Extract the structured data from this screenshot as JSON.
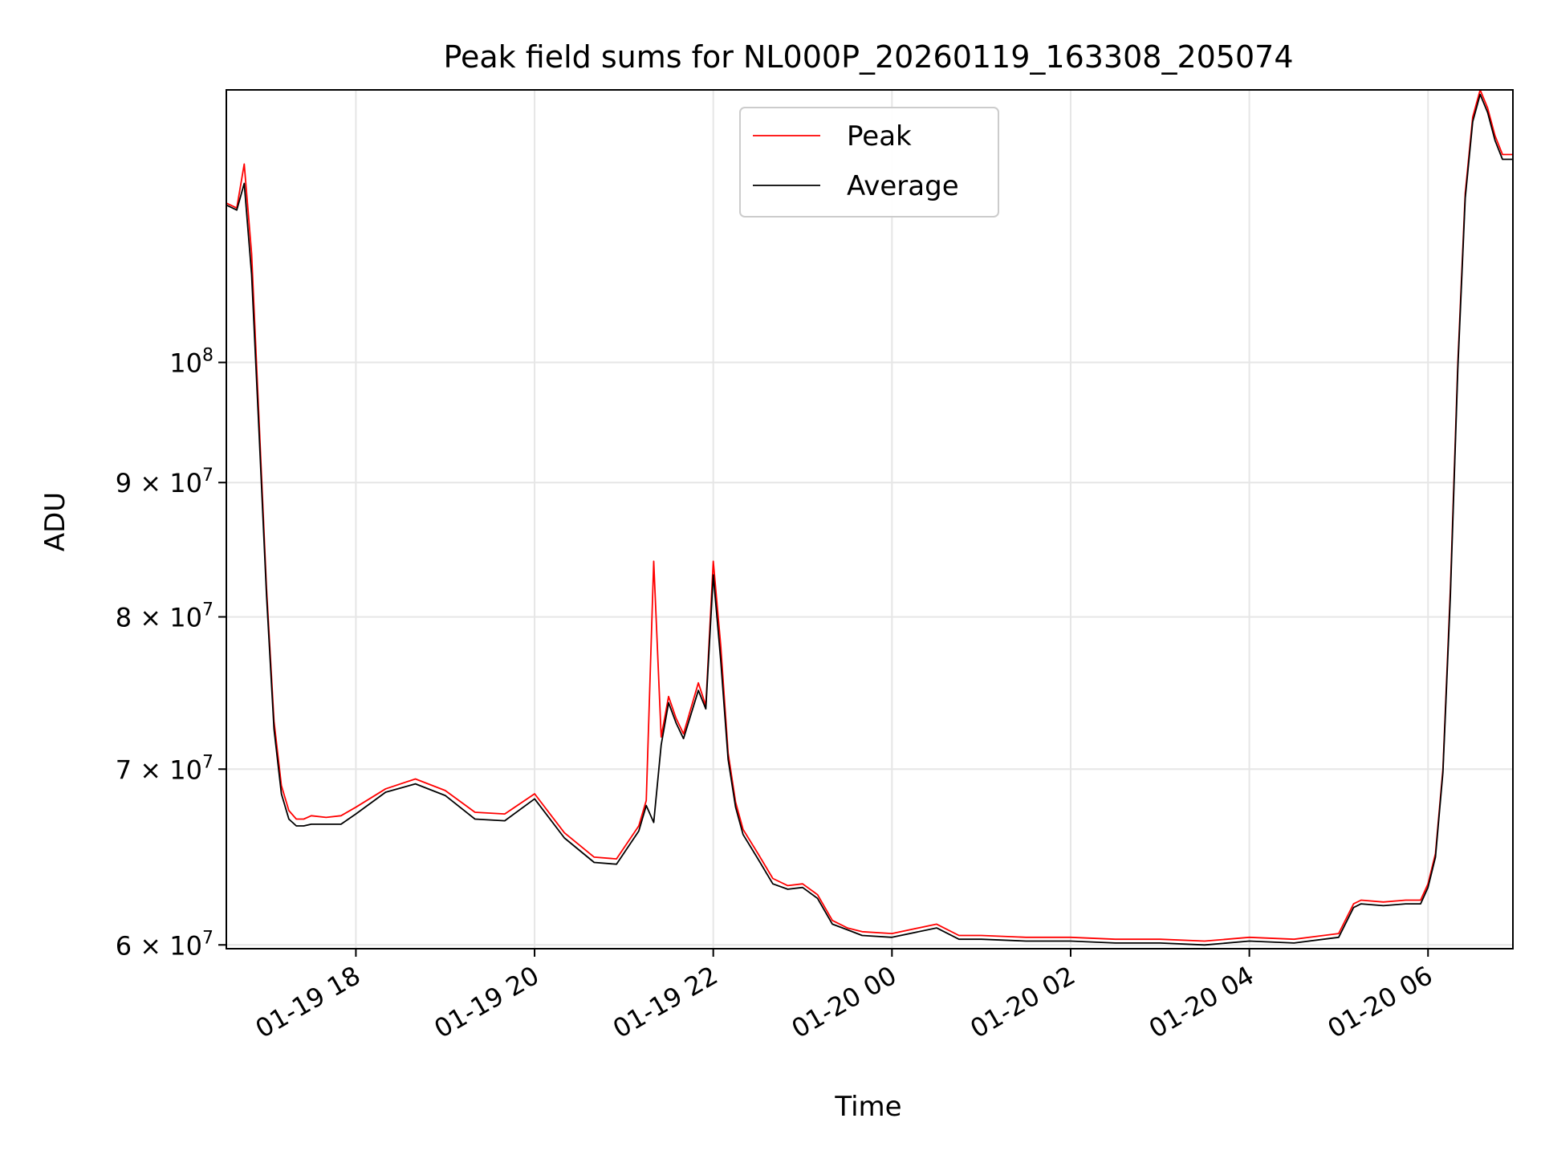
{
  "chart_data": {
    "type": "line",
    "title": "Peak field sums for NL000P_20260119_163308_205074",
    "xlabel": "Time",
    "ylabel": "ADU",
    "y_scale": "log",
    "ylim": [
      59800000,
      127000000
    ],
    "xlim": [
      "2026-01-19 16:33",
      "2026-01-20 06:57"
    ],
    "grid": true,
    "legend": {
      "placement": "upper center"
    },
    "x_ticks": [
      {
        "value": "2026-01-19 18:00",
        "label": "01-19 18"
      },
      {
        "value": "2026-01-19 20:00",
        "label": "01-19 20"
      },
      {
        "value": "2026-01-19 22:00",
        "label": "01-19 22"
      },
      {
        "value": "2026-01-20 00:00",
        "label": "01-20 00"
      },
      {
        "value": "2026-01-20 02:00",
        "label": "01-20 02"
      },
      {
        "value": "2026-01-20 04:00",
        "label": "01-20 04"
      },
      {
        "value": "2026-01-20 06:00",
        "label": "01-20 06"
      }
    ],
    "y_ticks": [
      {
        "value": 60000000,
        "mantissa": "6",
        "exponent": "7"
      },
      {
        "value": 70000000,
        "mantissa": "7",
        "exponent": "7"
      },
      {
        "value": 80000000,
        "mantissa": "8",
        "exponent": "7"
      },
      {
        "value": 90000000,
        "mantissa": "9",
        "exponent": "7"
      },
      {
        "value": 100000000,
        "mantissa": "",
        "exponent": "8"
      }
    ],
    "series": [
      {
        "name": "Peak",
        "color": "#ff0000",
        "x": [
          "2026-01-19 16:33",
          "2026-01-19 16:40",
          "2026-01-19 16:45",
          "2026-01-19 16:50",
          "2026-01-19 16:55",
          "2026-01-19 17:00",
          "2026-01-19 17:05",
          "2026-01-19 17:10",
          "2026-01-19 17:15",
          "2026-01-19 17:20",
          "2026-01-19 17:25",
          "2026-01-19 17:30",
          "2026-01-19 17:40",
          "2026-01-19 17:50",
          "2026-01-19 18:00",
          "2026-01-19 18:20",
          "2026-01-19 18:40",
          "2026-01-19 19:00",
          "2026-01-19 19:20",
          "2026-01-19 19:40",
          "2026-01-19 20:00",
          "2026-01-19 20:20",
          "2026-01-19 20:40",
          "2026-01-19 20:55",
          "2026-01-19 21:10",
          "2026-01-19 21:15",
          "2026-01-19 21:20",
          "2026-01-19 21:25",
          "2026-01-19 21:30",
          "2026-01-19 21:35",
          "2026-01-19 21:40",
          "2026-01-19 21:50",
          "2026-01-19 21:55",
          "2026-01-19 22:00",
          "2026-01-19 22:05",
          "2026-01-19 22:10",
          "2026-01-19 22:15",
          "2026-01-19 22:20",
          "2026-01-19 22:30",
          "2026-01-19 22:40",
          "2026-01-19 22:50",
          "2026-01-19 23:00",
          "2026-01-19 23:10",
          "2026-01-19 23:20",
          "2026-01-19 23:30",
          "2026-01-19 23:40",
          "2026-01-20 00:00",
          "2026-01-20 00:30",
          "2026-01-20 00:45",
          "2026-01-20 01:00",
          "2026-01-20 01:30",
          "2026-01-20 02:00",
          "2026-01-20 02:30",
          "2026-01-20 03:00",
          "2026-01-20 03:30",
          "2026-01-20 04:00",
          "2026-01-20 04:30",
          "2026-01-20 05:00",
          "2026-01-20 05:10",
          "2026-01-20 05:15",
          "2026-01-20 05:30",
          "2026-01-20 05:45",
          "2026-01-20 05:55",
          "2026-01-20 06:00",
          "2026-01-20 06:05",
          "2026-01-20 06:10",
          "2026-01-20 06:15",
          "2026-01-20 06:20",
          "2026-01-20 06:25",
          "2026-01-20 06:30",
          "2026-01-20 06:35",
          "2026-01-20 06:40",
          "2026-01-20 06:45",
          "2026-01-20 06:50",
          "2026-01-20 06:57"
        ],
        "values": [
          115000000,
          114500000,
          119000000,
          110000000,
          95000000,
          82000000,
          73000000,
          69000000,
          67500000,
          67000000,
          67000000,
          67200000,
          67100000,
          67200000,
          67700000,
          68800000,
          69400000,
          68700000,
          67400000,
          67300000,
          68500000,
          66200000,
          64800000,
          64700000,
          66600000,
          68100000,
          84000000,
          72000000,
          74600000,
          73200000,
          72200000,
          75500000,
          74000000,
          84000000,
          78000000,
          71000000,
          68000000,
          66400000,
          65000000,
          63600000,
          63200000,
          63300000,
          62700000,
          61300000,
          60900000,
          60700000,
          60600000,
          61100000,
          60500000,
          60500000,
          60400000,
          60400000,
          60300000,
          60300000,
          60200000,
          60400000,
          60300000,
          60600000,
          62200000,
          62400000,
          62300000,
          62400000,
          62400000,
          63300000,
          65000000,
          70000000,
          82000000,
          100000000,
          116000000,
          124000000,
          127000000,
          125000000,
          122000000,
          120000000,
          120000000
        ]
      },
      {
        "name": "Average",
        "color": "#000000",
        "x": [
          "2026-01-19 16:33",
          "2026-01-19 16:40",
          "2026-01-19 16:45",
          "2026-01-19 16:50",
          "2026-01-19 16:55",
          "2026-01-19 17:00",
          "2026-01-19 17:05",
          "2026-01-19 17:10",
          "2026-01-19 17:15",
          "2026-01-19 17:20",
          "2026-01-19 17:25",
          "2026-01-19 17:30",
          "2026-01-19 17:40",
          "2026-01-19 17:50",
          "2026-01-19 18:00",
          "2026-01-19 18:20",
          "2026-01-19 18:40",
          "2026-01-19 19:00",
          "2026-01-19 19:20",
          "2026-01-19 19:40",
          "2026-01-19 20:00",
          "2026-01-19 20:20",
          "2026-01-19 20:40",
          "2026-01-19 20:55",
          "2026-01-19 21:10",
          "2026-01-19 21:15",
          "2026-01-19 21:20",
          "2026-01-19 21:25",
          "2026-01-19 21:30",
          "2026-01-19 21:35",
          "2026-01-19 21:40",
          "2026-01-19 21:50",
          "2026-01-19 21:55",
          "2026-01-19 22:00",
          "2026-01-19 22:05",
          "2026-01-19 22:10",
          "2026-01-19 22:15",
          "2026-01-19 22:20",
          "2026-01-19 22:30",
          "2026-01-19 22:40",
          "2026-01-19 22:50",
          "2026-01-19 23:00",
          "2026-01-19 23:10",
          "2026-01-19 23:20",
          "2026-01-19 23:30",
          "2026-01-19 23:40",
          "2026-01-20 00:00",
          "2026-01-20 00:30",
          "2026-01-20 00:45",
          "2026-01-20 01:00",
          "2026-01-20 01:30",
          "2026-01-20 02:00",
          "2026-01-20 02:30",
          "2026-01-20 03:00",
          "2026-01-20 03:30",
          "2026-01-20 04:00",
          "2026-01-20 04:30",
          "2026-01-20 05:00",
          "2026-01-20 05:10",
          "2026-01-20 05:15",
          "2026-01-20 05:30",
          "2026-01-20 05:45",
          "2026-01-20 05:55",
          "2026-01-20 06:00",
          "2026-01-20 06:05",
          "2026-01-20 06:10",
          "2026-01-20 06:15",
          "2026-01-20 06:20",
          "2026-01-20 06:25",
          "2026-01-20 06:30",
          "2026-01-20 06:35",
          "2026-01-20 06:40",
          "2026-01-20 06:45",
          "2026-01-20 06:50",
          "2026-01-20 06:57"
        ],
        "values": [
          114800000,
          114300000,
          117000000,
          108000000,
          94000000,
          81500000,
          72500000,
          68500000,
          67000000,
          66600000,
          66600000,
          66700000,
          66700000,
          66700000,
          67300000,
          68600000,
          69100000,
          68400000,
          67000000,
          66900000,
          68200000,
          65900000,
          64500000,
          64400000,
          66300000,
          67800000,
          66800000,
          71500000,
          74200000,
          72900000,
          71900000,
          75000000,
          73800000,
          83000000,
          77000000,
          70600000,
          67700000,
          66100000,
          64700000,
          63300000,
          63000000,
          63100000,
          62500000,
          61100000,
          60800000,
          60500000,
          60400000,
          60900000,
          60300000,
          60300000,
          60200000,
          60200000,
          60100000,
          60100000,
          60000000,
          60200000,
          60100000,
          60400000,
          62000000,
          62200000,
          62100000,
          62200000,
          62200000,
          63100000,
          64800000,
          69800000,
          81500000,
          99500000,
          115500000,
          123500000,
          126500000,
          124500000,
          121500000,
          119500000,
          119500000
        ]
      }
    ]
  }
}
